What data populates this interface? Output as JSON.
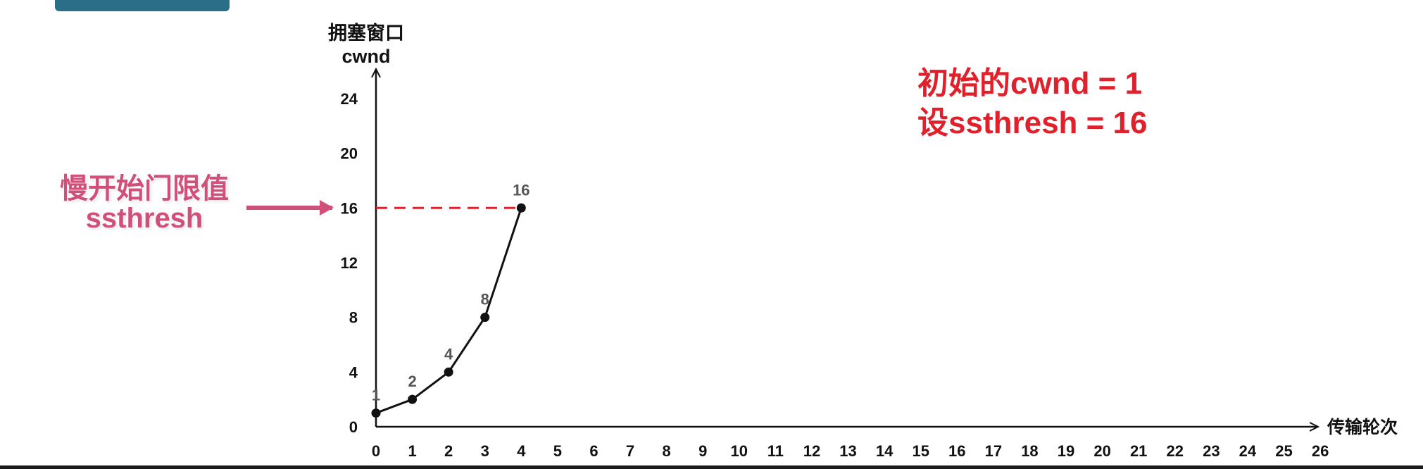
{
  "chart_data": {
    "type": "line",
    "ylabel_cn": "拥塞窗口",
    "ylabel_en": "cwnd",
    "xlabel": "传输轮次",
    "x_ticks": [
      0,
      1,
      2,
      3,
      4,
      5,
      6,
      7,
      8,
      9,
      10,
      11,
      12,
      13,
      14,
      15,
      16,
      17,
      18,
      19,
      20,
      21,
      22,
      23,
      24,
      25,
      26
    ],
    "y_ticks": [
      0,
      4,
      8,
      12,
      16,
      20,
      24
    ],
    "xlim": [
      0,
      26
    ],
    "ylim": [
      0,
      24
    ],
    "series": [
      {
        "x": [
          0,
          1,
          2,
          3,
          4
        ],
        "values": [
          1,
          2,
          4,
          8,
          16
        ],
        "point_labels": [
          "1",
          "2",
          "4",
          "8",
          "16"
        ]
      }
    ],
    "threshold": {
      "value": 16,
      "from_x": 0,
      "to_x": 4,
      "style": "dashed",
      "color": "#e0202a"
    },
    "annotations": {
      "note_line1": "初始的cwnd = 1",
      "note_line2": "设ssthresh = 16",
      "callout_line1": "慢开始门限值",
      "callout_line2": "ssthresh"
    },
    "colors": {
      "line": "#111111",
      "note": "#e0202a",
      "callout": "#d0507a",
      "arrow": "#d0507a"
    }
  }
}
